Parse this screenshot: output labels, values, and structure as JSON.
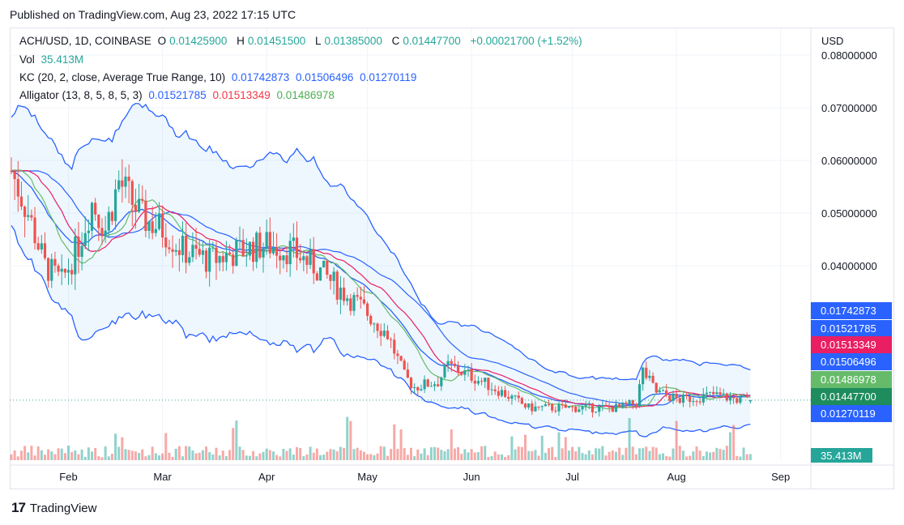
{
  "published": "Published on TradingView.com, Aug 23, 2022 17:15 UTC",
  "footer": {
    "logo": "17",
    "brand": "TradingView"
  },
  "legend": {
    "symbol": "ACH/USD, 1D, COINBASE",
    "o_label": "O",
    "o": "0.01425900",
    "h_label": "H",
    "h": "0.01451500",
    "l_label": "L",
    "l": "0.01385000",
    "c_label": "C",
    "c": "0.01447700",
    "change": "+0.00021700 (+1.52%)",
    "vol_label": "Vol",
    "vol": "35.413M",
    "kc_label": "KC (20, 2, close, Average True Range, 10)",
    "kc_upper": "0.01742873",
    "kc_mid": "0.01506496",
    "kc_lower": "0.01270119",
    "alligator_label": "Alligator (13, 8, 5, 8, 5, 3)",
    "jaw": "0.01521785",
    "teeth": "0.01513349",
    "lips": "0.01486978"
  },
  "colors": {
    "up": "#26a69a",
    "down": "#ef5350",
    "kc": "#2962ff",
    "jaw": "#2962ff",
    "teeth": "#e91e63",
    "lips": "#66bb6a"
  },
  "chart_data": {
    "type": "candlestick",
    "currency": "USD",
    "y_axis_ticks": [
      "0.08000000",
      "0.07000000",
      "0.06000000",
      "0.05000000",
      "0.04000000"
    ],
    "x_axis_ticks": [
      "Feb",
      "Mar",
      "Apr",
      "May",
      "Jun",
      "Jul",
      "Aug",
      "Sep"
    ],
    "price_labels": [
      {
        "value": "0.01742873",
        "color": "#2962ff"
      },
      {
        "value": "0.01521785",
        "color": "#2962ff"
      },
      {
        "value": "0.01513349",
        "color": "#e91e63"
      },
      {
        "value": "0.01506496",
        "color": "#2962ff"
      },
      {
        "value": "0.01486978",
        "color": "#66bb6a"
      },
      {
        "value": "0.01447700",
        "color": "#1e8c5c"
      },
      {
        "value": "0.01270119",
        "color": "#2962ff"
      }
    ],
    "volume_label": "35.413M",
    "close_anchors": [
      [
        "2022-01-15",
        0.058
      ],
      [
        "2022-01-20",
        0.05
      ],
      [
        "2022-01-25",
        0.04
      ],
      [
        "2022-01-30",
        0.037
      ],
      [
        "2022-02-04",
        0.044
      ],
      [
        "2022-02-08",
        0.052
      ],
      [
        "2022-02-12",
        0.047
      ],
      [
        "2022-02-16",
        0.056
      ],
      [
        "2022-02-19",
        0.053
      ],
      [
        "2022-02-23",
        0.049
      ],
      [
        "2022-03-01",
        0.047
      ],
      [
        "2022-03-07",
        0.043
      ],
      [
        "2022-03-15",
        0.041
      ],
      [
        "2022-03-25",
        0.043
      ],
      [
        "2022-04-01",
        0.044
      ],
      [
        "2022-04-08",
        0.043
      ],
      [
        "2022-04-15",
        0.04
      ],
      [
        "2022-04-22",
        0.036
      ],
      [
        "2022-05-01",
        0.031
      ],
      [
        "2022-05-07",
        0.027
      ],
      [
        "2022-05-12",
        0.019
      ],
      [
        "2022-05-15",
        0.017
      ],
      [
        "2022-05-22",
        0.018
      ],
      [
        "2022-05-25",
        0.021
      ],
      [
        "2022-06-01",
        0.019
      ],
      [
        "2022-06-10",
        0.016
      ],
      [
        "2022-06-18",
        0.013
      ],
      [
        "2022-06-25",
        0.013
      ],
      [
        "2022-07-05",
        0.013
      ],
      [
        "2022-07-15",
        0.013
      ],
      [
        "2022-07-20",
        0.014
      ],
      [
        "2022-07-22",
        0.02
      ],
      [
        "2022-07-26",
        0.016
      ],
      [
        "2022-08-02",
        0.0145
      ],
      [
        "2022-08-12",
        0.0155
      ],
      [
        "2022-08-20",
        0.0145
      ],
      [
        "2022-08-23",
        0.01448
      ]
    ],
    "last_bar": {
      "date": "2022-08-23",
      "o": 0.014259,
      "h": 0.014515,
      "l": 0.01385,
      "c": 0.014477
    },
    "keltner_channel": {
      "upper": 0.01742873,
      "basis": 0.01506496,
      "lower": 0.01270119
    },
    "alligator": {
      "jaw": 0.01521785,
      "teeth": 0.01513349,
      "lips": 0.01486978
    }
  }
}
